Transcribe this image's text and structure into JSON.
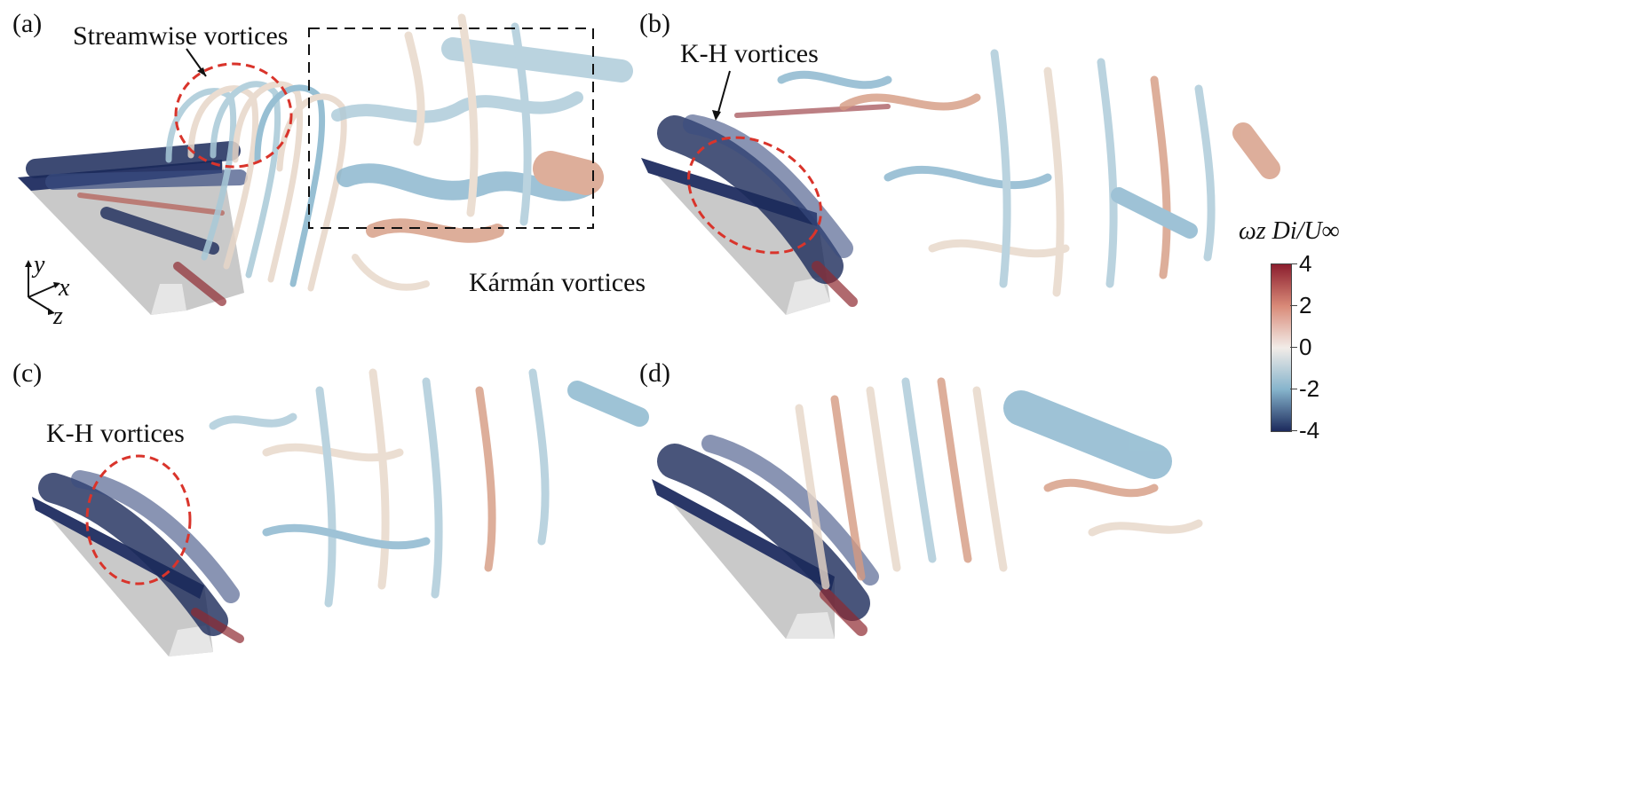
{
  "panels": [
    {
      "id": "a",
      "label": "(a)"
    },
    {
      "id": "b",
      "label": "(b)"
    },
    {
      "id": "c",
      "label": "(c)"
    },
    {
      "id": "d",
      "label": "(d)"
    }
  ],
  "annotations": {
    "streamwise": "Streamwise vortices",
    "karman": "Kármán vortices",
    "kh_b": "K-H vortices",
    "kh_c": "K-H vortices"
  },
  "axes_triad": {
    "x": "x",
    "y": "y",
    "z": "z"
  },
  "colorbar": {
    "title": "ωz Di/U∞",
    "ticks": [
      "4",
      "2",
      "0",
      "-2",
      "-4"
    ],
    "colors": [
      "#8b1e2e",
      "#d98a78",
      "#f2ece8",
      "#86b4cc",
      "#1c2a5c"
    ]
  },
  "colors": {
    "dark": "#1b2a5a",
    "blue": "#7fb0c8",
    "paleblue": "#a9c9d8",
    "cream": "#e7d6c8",
    "salmon": "#d59a82",
    "red": "#8f2a30",
    "gray": "#c9c9c9",
    "annot_red": "#d9342b"
  }
}
